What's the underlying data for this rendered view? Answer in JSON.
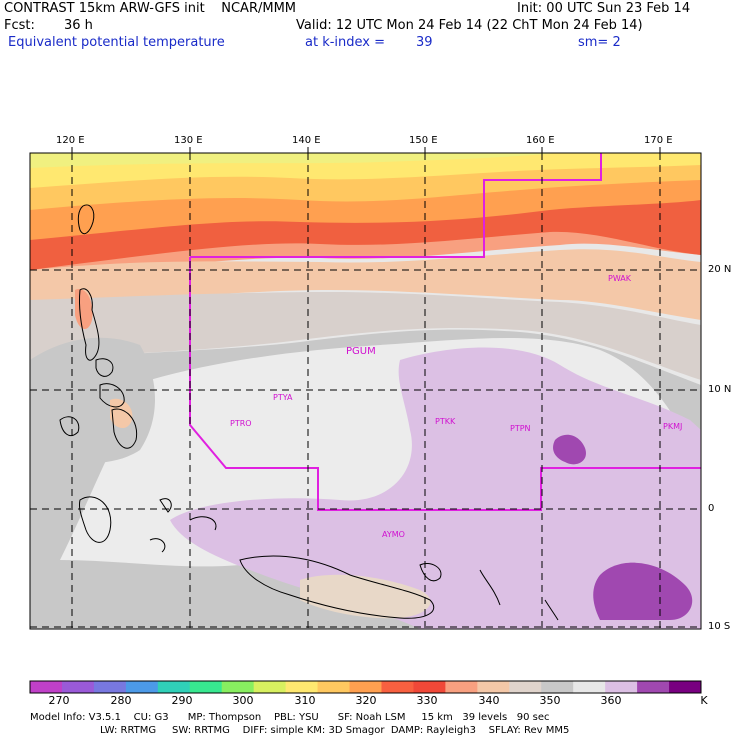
{
  "header": {
    "line1_left": "CONTRAST 15km ARW-GFS init    NCAR/MMM",
    "line1_right": "Init: 00 UTC Sun 23 Feb 14",
    "fcst_label": "Fcst:",
    "fcst_value": "36 h",
    "valid": "Valid: 12 UTC Mon 24 Feb 14 (22 ChT Mon 24 Feb 14)",
    "field": "Equivalent potential temperature",
    "level_label": "at k-index =",
    "level_value": "39",
    "smooth": "sm= 2"
  },
  "map": {
    "lon_labels": [
      "120 E",
      "130 E",
      "140 E",
      "150 E",
      "160 E",
      "170 E"
    ],
    "lat_labels": [
      "20 N",
      "10 N",
      "0",
      "10 S"
    ],
    "stations": [
      {
        "id": "PWAK"
      },
      {
        "id": "PGUM"
      },
      {
        "id": "PTYA"
      },
      {
        "id": "PTRO"
      },
      {
        "id": "PTKK"
      },
      {
        "id": "PTPN"
      },
      {
        "id": "PKMJ"
      },
      {
        "id": "AYMO"
      }
    ],
    "colors": {
      "domain_boundary": "#e020e0",
      "grid_lines": "#000000"
    }
  },
  "colorbar": {
    "labels": [
      "270",
      "280",
      "290",
      "300",
      "310",
      "320",
      "330",
      "340",
      "350",
      "360"
    ],
    "unit": "K",
    "colors": [
      "#c040c8",
      "#9a5ad8",
      "#7878e0",
      "#4c9ae8",
      "#30d0b8",
      "#38e890",
      "#88ee60",
      "#d8f060",
      "#ffe870",
      "#ffc860",
      "#ffa050",
      "#f86040",
      "#f04838",
      "#f8a080",
      "#f4c8a8",
      "#e0d4cc",
      "#c8c8c8",
      "#e8e8e8",
      "#dcc0e4",
      "#a048b0",
      "#780080"
    ]
  },
  "footer": {
    "line1": "Model Info: V3.5.1    CU: G3      MP: Thompson    PBL: YSU      SF: Noah LSM     15 km   39 levels   90 sec",
    "line2": "LW: RRTMG     SW: RRTMG    DIFF: simple KM: 3D Smagor  DAMP: Rayleigh3    SFLAY: Rev MM5"
  }
}
